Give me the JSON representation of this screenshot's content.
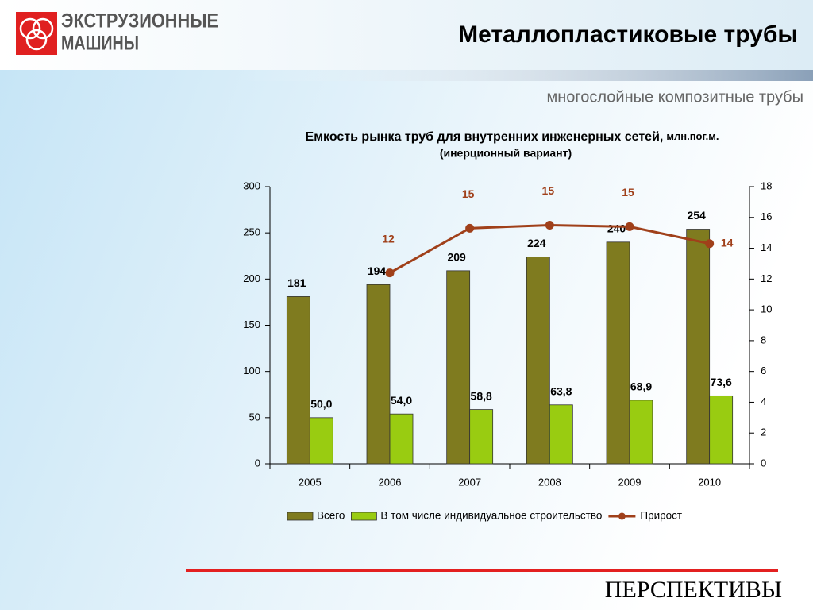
{
  "header": {
    "logo_line1": "ЭКСТРУЗИОННЫЕ",
    "logo_line2": "МАШИНЫ",
    "title": "Металлопластиковые трубы",
    "subtitle": "многослойные композитные трубы"
  },
  "footer": {
    "text": "ПЕРСПЕКТИВЫ"
  },
  "chart_data": {
    "type": "bar_line",
    "title": "Емкость рынка труб для внутренних инженерных сетей,",
    "title_unit": "млн.пог.м.",
    "subtitle": "(инерционный вариант)",
    "categories": [
      "2005",
      "2006",
      "2007",
      "2008",
      "2009",
      "2010"
    ],
    "series": [
      {
        "name": "Всего",
        "color": "#7f7b1f",
        "values": [
          181,
          194,
          209,
          224,
          240,
          254
        ]
      },
      {
        "name": "В том числе индивидуальное строительство",
        "color": "#99cc11",
        "values": [
          50.0,
          54.0,
          58.8,
          63.8,
          68.9,
          73.6
        ],
        "value_labels": [
          "50,0",
          "54,0",
          "58,8",
          "63,8",
          "68,9",
          "73,6"
        ]
      },
      {
        "name": "Прирост",
        "color": "#a0401a",
        "axis": "y2",
        "values": [
          null,
          12.4,
          15.3,
          15.5,
          15.4,
          14.3
        ],
        "value_labels": [
          null,
          "12",
          "15",
          "15",
          "15",
          "14"
        ]
      }
    ],
    "ylim": [
      0,
      300
    ],
    "yticks": [
      0,
      50,
      100,
      150,
      200,
      250,
      300
    ],
    "y2lim": [
      0,
      18
    ],
    "y2ticks": [
      0,
      2,
      4,
      6,
      8,
      10,
      12,
      14,
      16,
      18
    ],
    "legend": "bottom"
  }
}
